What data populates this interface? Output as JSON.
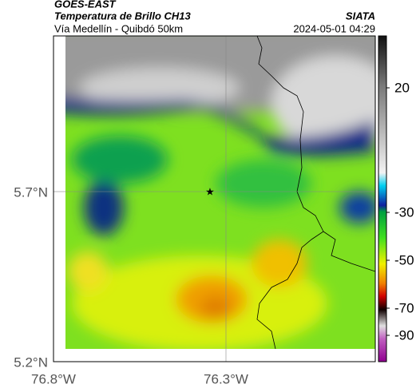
{
  "header": {
    "source": "GOES-EAST",
    "title": "Temperatura de Brillo CH13",
    "subtitle": "Vía Medellín - Quibdó 50km",
    "agency": "SIATA",
    "timestamp": "2024-05-01 04:29"
  },
  "axes": {
    "lat_labels": [
      "5.7°N",
      "5.2°N"
    ],
    "lon_labels": [
      "76.8°W",
      "76.3°W"
    ]
  },
  "colorbar": {
    "ticks": [
      20,
      -30,
      -50,
      -70,
      -90
    ]
  }
}
